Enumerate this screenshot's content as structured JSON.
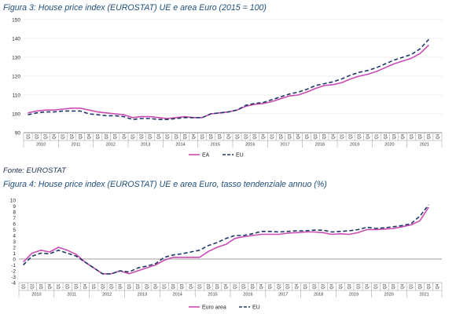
{
  "figure1": {
    "title": "Figura 3: House price index (EUROSTAT) UE e area Euro (2015 = 100)"
  },
  "source": "Fonte: EUROSTAT",
  "figure2": {
    "title": "Figura 4: House price index (EUROSTAT) UE e area Euro, tasso tendenziale annuo (%)"
  },
  "colors": {
    "ea": "#c94bb3",
    "eu": "#1f3864",
    "grid": "#d9d9d9",
    "axis": "#7f7f7f"
  },
  "chart_data": [
    {
      "type": "line",
      "title": "Figura 3: House price index (EUROSTAT) UE e area Euro (2015 = 100)",
      "quarter_labels": [
        "Q1",
        "Q2",
        "Q3",
        "Q4"
      ],
      "years": [
        "2010",
        "2011",
        "2012",
        "2013",
        "2014",
        "2015",
        "2016",
        "2017",
        "2018",
        "2019",
        "2020",
        "2021"
      ],
      "ylim": [
        90,
        150
      ],
      "yticks": [
        90,
        100,
        110,
        120,
        130,
        140,
        150
      ],
      "grid": true,
      "legend_position": "bottom-center",
      "series": [
        {
          "name": "EA",
          "style": "solid",
          "values": [
            100.5,
            101.5,
            102.0,
            102.0,
            102.5,
            103.0,
            103.0,
            102.0,
            101.0,
            100.5,
            100.0,
            99.5,
            98.0,
            98.5,
            98.5,
            98.0,
            97.5,
            98.0,
            98.5,
            98.0,
            98.0,
            100.0,
            100.5,
            101.0,
            102.0,
            104.0,
            105.0,
            105.5,
            106.5,
            108.0,
            109.5,
            110.0,
            111.5,
            113.5,
            115.0,
            115.5,
            116.5,
            118.5,
            120.0,
            121.0,
            122.5,
            124.5,
            126.5,
            128.0,
            129.5,
            132.0,
            136.5
          ]
        },
        {
          "name": "EU",
          "style": "dashed",
          "values": [
            99.5,
            100.5,
            101.0,
            101.0,
            101.5,
            101.5,
            101.5,
            100.0,
            99.5,
            99.0,
            99.0,
            98.5,
            97.0,
            97.5,
            97.5,
            97.0,
            97.0,
            97.5,
            98.0,
            98.0,
            98.0,
            100.0,
            100.5,
            101.0,
            102.0,
            104.5,
            105.5,
            106.0,
            107.5,
            109.0,
            110.5,
            111.5,
            113.0,
            115.0,
            116.0,
            117.0,
            118.5,
            120.5,
            122.0,
            123.0,
            124.5,
            126.5,
            128.5,
            130.0,
            131.5,
            134.5,
            139.5
          ]
        }
      ]
    },
    {
      "type": "line",
      "title": "Figura 4: House price index (EUROSTAT) UE e area Euro, tasso tendenziale annuo (%)",
      "quarter_labels": [
        "Q1",
        "Q2",
        "Q3",
        "Q4"
      ],
      "years": [
        "2010",
        "2011",
        "2012",
        "2013",
        "2014",
        "2015",
        "2016",
        "2017",
        "2018",
        "2019",
        "2020",
        "2021"
      ],
      "ylim": [
        -4,
        10
      ],
      "yticks": [
        -4,
        -3,
        -2,
        -1,
        0,
        1,
        2,
        3,
        4,
        5,
        6,
        7,
        8,
        9,
        10
      ],
      "grid": false,
      "legend_position": "bottom-center",
      "series": [
        {
          "name": "Euro area",
          "style": "solid",
          "values": [
            -0.5,
            1.0,
            1.5,
            1.2,
            2.0,
            1.5,
            0.8,
            -0.5,
            -1.5,
            -2.5,
            -2.5,
            -2.0,
            -2.5,
            -2.0,
            -1.5,
            -1.0,
            -0.2,
            0.3,
            0.3,
            0.3,
            0.3,
            1.3,
            2.0,
            2.5,
            3.5,
            3.8,
            4.0,
            4.2,
            4.2,
            4.2,
            4.4,
            4.5,
            4.6,
            4.6,
            4.5,
            4.2,
            4.3,
            4.2,
            4.5,
            5.0,
            5.0,
            5.1,
            5.2,
            5.5,
            5.8,
            6.5,
            8.8
          ]
        },
        {
          "name": "EU",
          "style": "dashed",
          "values": [
            -1.0,
            0.5,
            1.0,
            0.9,
            1.5,
            1.0,
            0.5,
            -0.5,
            -1.5,
            -2.5,
            -2.5,
            -2.0,
            -2.2,
            -1.5,
            -1.2,
            -0.8,
            0.3,
            0.7,
            0.9,
            1.2,
            1.5,
            2.3,
            2.8,
            3.5,
            4.0,
            4.0,
            4.3,
            4.7,
            4.7,
            4.6,
            4.7,
            4.8,
            4.8,
            4.9,
            4.9,
            4.6,
            4.7,
            4.8,
            5.0,
            5.4,
            5.2,
            5.3,
            5.5,
            5.7,
            6.0,
            7.3,
            9.2
          ]
        }
      ]
    }
  ]
}
